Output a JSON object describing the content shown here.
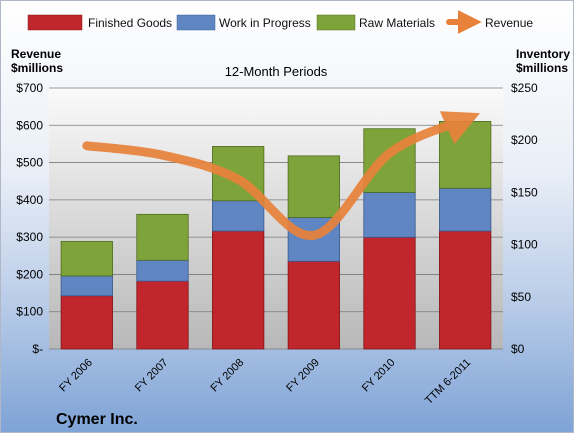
{
  "chart_data": {
    "type": "bar",
    "subtitle": "12-Month Periods",
    "company": "Cymer Inc.",
    "categories": [
      "FY 2006",
      "FY 2007",
      "FY 2008",
      "FY 2009",
      "FY 2010",
      "TTM 6-2011"
    ],
    "left_axis": {
      "label_line1": "Revenue",
      "label_line2": "$millions",
      "ylim": [
        0,
        700
      ],
      "ticks": [
        0,
        100,
        200,
        300,
        400,
        500,
        600,
        700
      ],
      "tick_labels": [
        "$-",
        "$100",
        "$200",
        "$300",
        "$400",
        "$500",
        "$600",
        "$700"
      ]
    },
    "right_axis": {
      "label_line1": "Inventory",
      "label_line2": "$millions",
      "ylim": [
        0,
        250
      ],
      "ticks": [
        0,
        50,
        100,
        150,
        200,
        250
      ],
      "tick_labels": [
        "$0",
        "$50",
        "$100",
        "$150",
        "$200",
        "$250"
      ]
    },
    "series": [
      {
        "name": "Finished Goods",
        "axis": "right",
        "stacked": true,
        "color": "#c0262c",
        "values": [
          51,
          65,
          113,
          84,
          107,
          113
        ]
      },
      {
        "name": "Work in Progress",
        "axis": "right",
        "stacked": true,
        "color": "#5f86c2",
        "values": [
          19,
          20,
          29,
          42,
          43,
          41
        ]
      },
      {
        "name": "Raw Materials",
        "axis": "right",
        "stacked": true,
        "color": "#7ea33a",
        "values": [
          33,
          44,
          52,
          59,
          61,
          64
        ]
      },
      {
        "name": "Revenue",
        "axis": "left",
        "type": "line",
        "color": "#e8823a",
        "values": [
          545,
          520,
          455,
          305,
          525,
          615
        ]
      }
    ],
    "legend_position": "top",
    "grid": true
  }
}
